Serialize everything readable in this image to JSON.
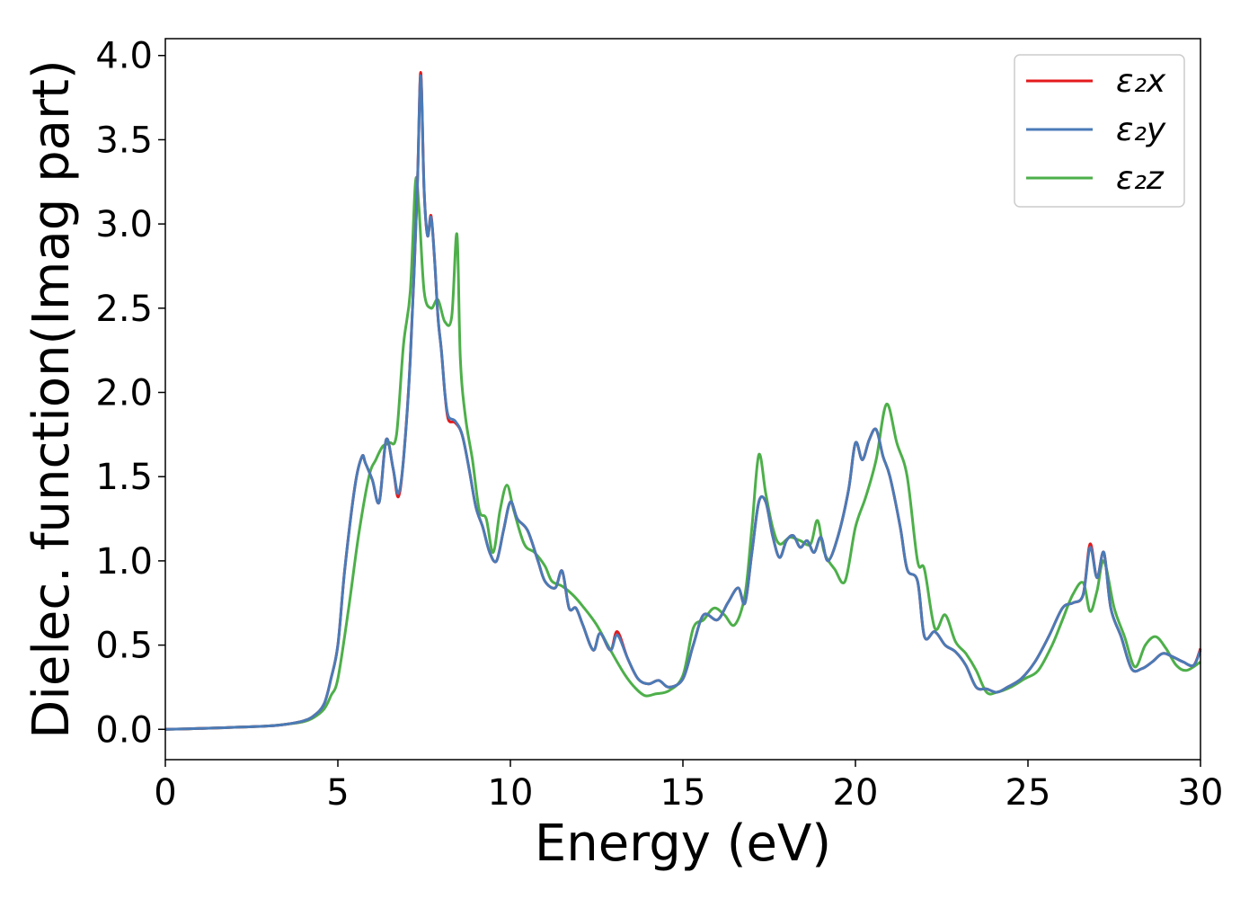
{
  "chart_data": {
    "type": "line",
    "title": "",
    "xlabel": "Energy (eV)",
    "ylabel": "Dielec. function(Imag part)",
    "xlim": [
      0,
      30
    ],
    "ylim": [
      -0.18,
      4.1
    ],
    "xticks": [
      0,
      5,
      10,
      15,
      20,
      25,
      30
    ],
    "xtick_labels": [
      "0",
      "5",
      "10",
      "15",
      "20",
      "25",
      "30"
    ],
    "yticks": [
      0.0,
      0.5,
      1.0,
      1.5,
      2.0,
      2.5,
      3.0,
      3.5,
      4.0
    ],
    "ytick_labels": [
      "0.0",
      "0.5",
      "1.0",
      "1.5",
      "2.0",
      "2.5",
      "3.0",
      "3.5",
      "4.0"
    ],
    "grid": false,
    "legend_position": "top-right",
    "series": [
      {
        "name": "ε₂x",
        "color": "#e41a1c",
        "x": [
          0,
          1,
          2,
          3,
          3.5,
          4,
          4.3,
          4.6,
          4.8,
          5.0,
          5.2,
          5.5,
          5.7,
          5.8,
          6.0,
          6.2,
          6.4,
          6.6,
          6.75,
          6.9,
          7.1,
          7.3,
          7.4,
          7.5,
          7.6,
          7.7,
          7.8,
          7.9,
          8.0,
          8.1,
          8.2,
          8.4,
          8.6,
          8.8,
          9.0,
          9.2,
          9.4,
          9.6,
          9.8,
          10.0,
          10.2,
          10.5,
          10.8,
          11.0,
          11.3,
          11.5,
          11.7,
          11.9,
          12.1,
          12.4,
          12.6,
          12.9,
          13.1,
          13.4,
          13.7,
          14.0,
          14.3,
          14.6,
          15.0,
          15.3,
          15.6,
          16.0,
          16.3,
          16.6,
          16.8,
          17.0,
          17.2,
          17.4,
          17.6,
          17.8,
          18.0,
          18.2,
          18.4,
          18.6,
          18.8,
          19.0,
          19.2,
          19.5,
          19.8,
          20.0,
          20.2,
          20.4,
          20.6,
          20.8,
          21.0,
          21.3,
          21.5,
          21.8,
          22.0,
          22.3,
          22.6,
          22.9,
          23.2,
          23.5,
          23.8,
          24.1,
          24.4,
          24.8,
          25.2,
          25.6,
          26.0,
          26.3,
          26.6,
          26.8,
          27.0,
          27.2,
          27.4,
          27.7,
          28.0,
          28.3,
          28.6,
          28.9,
          29.2,
          29.5,
          29.8,
          30.0
        ],
        "values": [
          0.0,
          0.005,
          0.012,
          0.02,
          0.03,
          0.05,
          0.08,
          0.15,
          0.3,
          0.5,
          0.95,
          1.45,
          1.62,
          1.58,
          1.48,
          1.35,
          1.72,
          1.55,
          1.38,
          1.6,
          2.2,
          3.2,
          3.9,
          3.2,
          2.93,
          3.05,
          2.8,
          2.45,
          2.25,
          2.0,
          1.84,
          1.82,
          1.75,
          1.55,
          1.32,
          1.2,
          1.05,
          1.0,
          1.18,
          1.35,
          1.25,
          1.18,
          1.0,
          0.88,
          0.84,
          0.94,
          0.72,
          0.72,
          0.62,
          0.47,
          0.57,
          0.47,
          0.58,
          0.42,
          0.3,
          0.27,
          0.29,
          0.25,
          0.3,
          0.5,
          0.68,
          0.65,
          0.75,
          0.84,
          0.75,
          1.05,
          1.35,
          1.35,
          1.15,
          1.02,
          1.12,
          1.15,
          1.08,
          1.12,
          1.05,
          1.14,
          1.0,
          1.15,
          1.42,
          1.7,
          1.6,
          1.72,
          1.78,
          1.62,
          1.5,
          1.2,
          0.95,
          0.88,
          0.55,
          0.58,
          0.5,
          0.46,
          0.38,
          0.25,
          0.24,
          0.22,
          0.25,
          0.3,
          0.4,
          0.55,
          0.72,
          0.75,
          0.8,
          1.1,
          0.9,
          1.05,
          0.72,
          0.55,
          0.36,
          0.36,
          0.4,
          0.45,
          0.43,
          0.4,
          0.38,
          0.48
        ]
      },
      {
        "name": "ε₂y",
        "color": "#4a7bb7",
        "x": [
          0,
          1,
          2,
          3,
          3.5,
          4,
          4.3,
          4.6,
          4.8,
          5.0,
          5.2,
          5.5,
          5.7,
          5.8,
          6.0,
          6.2,
          6.4,
          6.6,
          6.75,
          6.9,
          7.1,
          7.3,
          7.4,
          7.5,
          7.6,
          7.7,
          7.8,
          7.9,
          8.0,
          8.1,
          8.2,
          8.4,
          8.6,
          8.8,
          9.0,
          9.2,
          9.4,
          9.6,
          9.8,
          10.0,
          10.2,
          10.5,
          10.8,
          11.0,
          11.3,
          11.5,
          11.7,
          11.9,
          12.1,
          12.4,
          12.6,
          12.9,
          13.1,
          13.4,
          13.7,
          14.0,
          14.3,
          14.6,
          15.0,
          15.3,
          15.6,
          16.0,
          16.3,
          16.6,
          16.8,
          17.0,
          17.2,
          17.4,
          17.6,
          17.8,
          18.0,
          18.2,
          18.4,
          18.6,
          18.8,
          19.0,
          19.2,
          19.5,
          19.8,
          20.0,
          20.2,
          20.4,
          20.6,
          20.8,
          21.0,
          21.3,
          21.5,
          21.8,
          22.0,
          22.3,
          22.6,
          22.9,
          23.2,
          23.5,
          23.8,
          24.1,
          24.4,
          24.8,
          25.2,
          25.6,
          26.0,
          26.3,
          26.6,
          26.8,
          27.0,
          27.2,
          27.4,
          27.7,
          28.0,
          28.3,
          28.6,
          28.9,
          29.2,
          29.5,
          29.8,
          30.0
        ],
        "values": [
          0.0,
          0.005,
          0.012,
          0.02,
          0.03,
          0.05,
          0.08,
          0.15,
          0.3,
          0.5,
          0.95,
          1.45,
          1.62,
          1.58,
          1.48,
          1.35,
          1.72,
          1.55,
          1.4,
          1.6,
          2.2,
          3.2,
          3.88,
          3.2,
          2.93,
          3.04,
          2.8,
          2.45,
          2.25,
          2.0,
          1.86,
          1.83,
          1.75,
          1.55,
          1.32,
          1.2,
          1.05,
          1.0,
          1.18,
          1.35,
          1.25,
          1.18,
          1.0,
          0.88,
          0.84,
          0.94,
          0.72,
          0.72,
          0.62,
          0.47,
          0.57,
          0.47,
          0.56,
          0.42,
          0.3,
          0.27,
          0.29,
          0.25,
          0.3,
          0.5,
          0.68,
          0.65,
          0.75,
          0.84,
          0.75,
          1.05,
          1.35,
          1.35,
          1.15,
          1.02,
          1.12,
          1.15,
          1.08,
          1.12,
          1.05,
          1.14,
          1.0,
          1.15,
          1.42,
          1.7,
          1.6,
          1.72,
          1.78,
          1.62,
          1.5,
          1.2,
          0.95,
          0.88,
          0.55,
          0.58,
          0.5,
          0.46,
          0.38,
          0.25,
          0.24,
          0.22,
          0.25,
          0.3,
          0.4,
          0.55,
          0.72,
          0.75,
          0.8,
          1.08,
          0.9,
          1.05,
          0.72,
          0.55,
          0.36,
          0.36,
          0.4,
          0.45,
          0.43,
          0.4,
          0.38,
          0.47
        ]
      },
      {
        "name": "ε₂z",
        "color": "#4daf4a",
        "x": [
          0,
          1,
          2,
          3,
          3.5,
          4,
          4.3,
          4.6,
          4.8,
          5.0,
          5.3,
          5.6,
          5.9,
          6.1,
          6.3,
          6.5,
          6.7,
          6.9,
          7.1,
          7.25,
          7.35,
          7.5,
          7.7,
          7.9,
          8.1,
          8.3,
          8.45,
          8.55,
          8.7,
          8.9,
          9.1,
          9.3,
          9.5,
          9.7,
          9.9,
          10.1,
          10.4,
          10.7,
          11.0,
          11.2,
          11.5,
          11.8,
          12.1,
          12.5,
          12.9,
          13.3,
          13.6,
          13.9,
          14.2,
          14.6,
          15.0,
          15.3,
          15.6,
          15.9,
          16.2,
          16.5,
          16.8,
          17.0,
          17.2,
          17.4,
          17.6,
          17.8,
          18.1,
          18.4,
          18.7,
          18.9,
          19.1,
          19.4,
          19.7,
          20.0,
          20.3,
          20.6,
          20.9,
          21.2,
          21.5,
          21.8,
          22.0,
          22.3,
          22.6,
          22.9,
          23.2,
          23.5,
          23.8,
          24.1,
          24.5,
          24.9,
          25.3,
          25.7,
          26.0,
          26.3,
          26.6,
          26.8,
          27.0,
          27.2,
          27.5,
          27.8,
          28.1,
          28.4,
          28.7,
          29.0,
          29.3,
          29.6,
          30.0
        ],
        "values": [
          0.0,
          0.005,
          0.012,
          0.02,
          0.03,
          0.045,
          0.07,
          0.12,
          0.2,
          0.3,
          0.7,
          1.15,
          1.5,
          1.6,
          1.68,
          1.7,
          1.75,
          2.28,
          2.6,
          3.25,
          3.1,
          2.6,
          2.5,
          2.55,
          2.42,
          2.45,
          2.94,
          2.2,
          1.85,
          1.6,
          1.3,
          1.25,
          1.05,
          1.3,
          1.45,
          1.3,
          1.1,
          1.05,
          0.97,
          0.88,
          0.85,
          0.8,
          0.73,
          0.62,
          0.47,
          0.33,
          0.25,
          0.2,
          0.21,
          0.23,
          0.32,
          0.6,
          0.65,
          0.72,
          0.68,
          0.62,
          0.8,
          1.2,
          1.63,
          1.4,
          1.2,
          1.1,
          1.14,
          1.12,
          1.1,
          1.24,
          1.05,
          0.95,
          0.88,
          1.2,
          1.38,
          1.6,
          1.93,
          1.7,
          1.5,
          1.0,
          0.95,
          0.6,
          0.68,
          0.52,
          0.45,
          0.35,
          0.22,
          0.22,
          0.25,
          0.3,
          0.35,
          0.5,
          0.65,
          0.8,
          0.87,
          0.7,
          0.82,
          1.0,
          0.72,
          0.55,
          0.37,
          0.5,
          0.55,
          0.48,
          0.38,
          0.35,
          0.4
        ]
      }
    ]
  }
}
